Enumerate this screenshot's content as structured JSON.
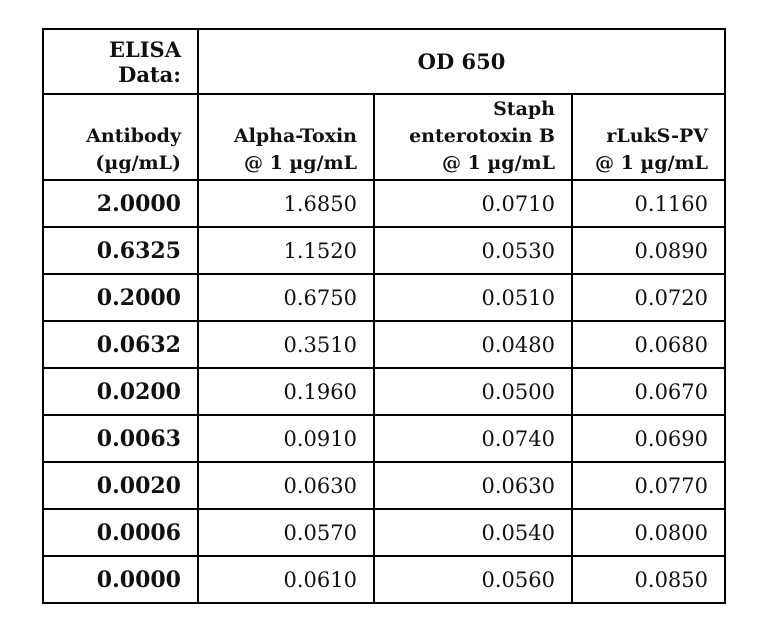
{
  "table": {
    "corner": [
      "ELISA",
      "Data:"
    ],
    "group_header": "OD 650",
    "columns": [
      [
        "Antibody",
        "(µg/mL)"
      ],
      [
        "Alpha-Toxin",
        "@ 1 µg/mL"
      ],
      [
        "Staph",
        "enterotoxin B",
        "@ 1 µg/mL"
      ],
      [
        "rLukS-PV",
        "@ 1 µg/mL"
      ]
    ],
    "rows": [
      [
        "2.0000",
        "1.6850",
        "0.0710",
        "0.1160"
      ],
      [
        "0.6325",
        "1.1520",
        "0.0530",
        "0.0890"
      ],
      [
        "0.2000",
        "0.6750",
        "0.0510",
        "0.0720"
      ],
      [
        "0.0632",
        "0.3510",
        "0.0480",
        "0.0680"
      ],
      [
        "0.0200",
        "0.1960",
        "0.0500",
        "0.0670"
      ],
      [
        "0.0063",
        "0.0910",
        "0.0740",
        "0.0690"
      ],
      [
        "0.0020",
        "0.0630",
        "0.0630",
        "0.0770"
      ],
      [
        "0.0006",
        "0.0570",
        "0.0540",
        "0.0800"
      ],
      [
        "0.0000",
        "0.0610",
        "0.0560",
        "0.0850"
      ]
    ]
  }
}
